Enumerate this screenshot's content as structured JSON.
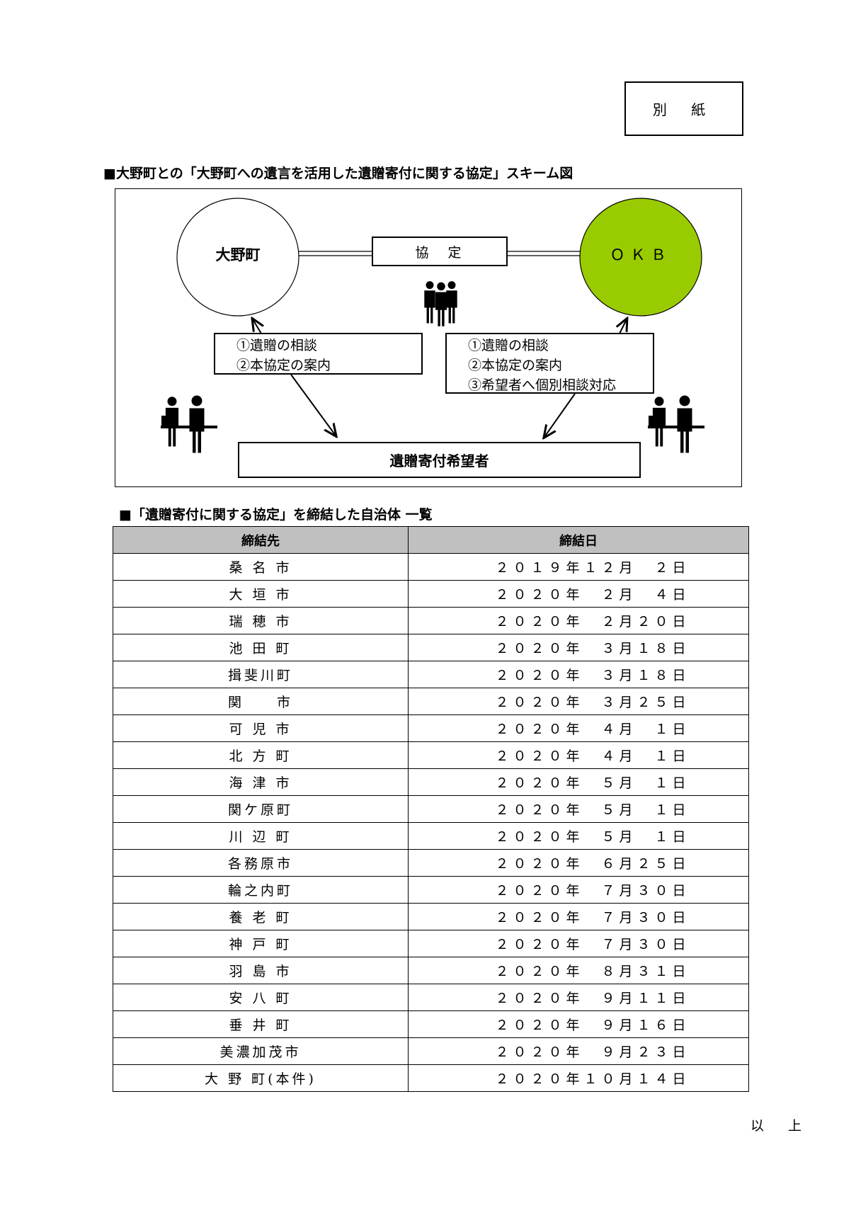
{
  "attachment_label": "別 紙",
  "scheme_title": "■大野町との「大野町への遺言を活用した遺贈寄付に関する協定」スキーム図",
  "diagram": {
    "left_party": "大野町",
    "right_party": "ＯＫＢ",
    "right_party_color": "#99cc00",
    "agreement": "協　定",
    "left_box": [
      "①遺贈の相談",
      "②本協定の案内"
    ],
    "right_box": [
      "①遺贈の相談",
      "②本協定の案内",
      "③希望者へ個別相談対応"
    ],
    "bottom_box": "遺贈寄付希望者",
    "icons": [
      "business-people-icon",
      "reception-desk-icon"
    ]
  },
  "list_title": "■「遺贈寄付に関する協定」を締結した自治体 一覧",
  "table": {
    "headers": [
      "締結先",
      "締結日"
    ],
    "header_color": "#c0c0c0",
    "rows": [
      [
        "桑 名 市",
        "２０１９年１２月　２日"
      ],
      [
        "大 垣 市",
        "２０２０年　２月　４日"
      ],
      [
        "瑞 穂 市",
        "２０２０年　２月２０日"
      ],
      [
        "池 田 町",
        "２０２０年　３月１８日"
      ],
      [
        "揖斐川町",
        "２０２０年　３月１８日"
      ],
      [
        "関　　市",
        "２０２０年　３月２５日"
      ],
      [
        "可 児 市",
        "２０２０年　４月　１日"
      ],
      [
        "北 方 町",
        "２０２０年　４月　１日"
      ],
      [
        "海 津 市",
        "２０２０年　５月　１日"
      ],
      [
        "関ケ原町",
        "２０２０年　５月　１日"
      ],
      [
        "川 辺 町",
        "２０２０年　５月　１日"
      ],
      [
        "各務原市",
        "２０２０年　６月２５日"
      ],
      [
        "輪之内町",
        "２０２０年　７月３０日"
      ],
      [
        "養 老 町",
        "２０２０年　７月３０日"
      ],
      [
        "神 戸 町",
        "２０２０年　７月３０日"
      ],
      [
        "羽 島 市",
        "２０２０年　８月３１日"
      ],
      [
        "安 八 町",
        "２０２０年　９月１１日"
      ],
      [
        "垂 井 町",
        "２０２０年　９月１６日"
      ],
      [
        "美濃加茂市",
        "２０２０年　９月２３日"
      ],
      [
        "大 野 町(本件)",
        "２０２０年１０月１４日"
      ]
    ]
  },
  "closing": "以 上"
}
